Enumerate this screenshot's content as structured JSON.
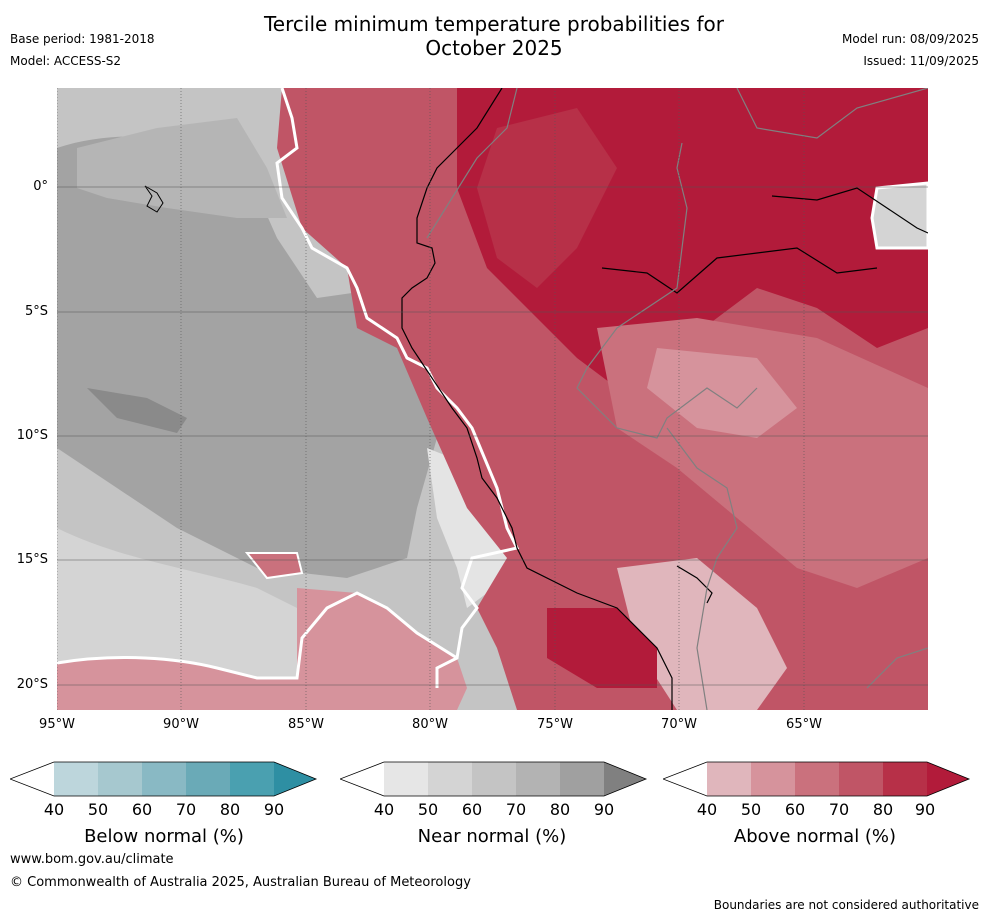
{
  "title_line1": "Tercile minimum temperature probabilities for",
  "title_line2": "October 2025",
  "base_period": "Base period: 1981-2018",
  "model": "Model: ACCESS-S2",
  "model_run": "Model run: 08/09/2025",
  "issued": "Issued: 11/09/2025",
  "lat_labels": [
    "0°",
    "5°S",
    "10°S",
    "15°S",
    "20°S"
  ],
  "lon_labels": [
    "95°W",
    "90°W",
    "85°W",
    "80°W",
    "75°W",
    "70°W",
    "65°W"
  ],
  "colorbars": [
    {
      "label": "Below normal (%)",
      "ticks": [
        "40",
        "50",
        "60",
        "70",
        "80",
        "90"
      ],
      "colors": [
        "#ffffff",
        "#bdd6dc",
        "#a6c8cf",
        "#89b9c4",
        "#6aaab7",
        "#4aa0b0",
        "#2e8fa3"
      ]
    },
    {
      "label": "Near normal (%)",
      "ticks": [
        "40",
        "50",
        "60",
        "70",
        "80",
        "90"
      ],
      "colors": [
        "#ffffff",
        "#e6e6e6",
        "#d4d4d4",
        "#c4c4c4",
        "#b3b3b3",
        "#a0a0a0",
        "#808080"
      ]
    },
    {
      "label": "Above normal (%)",
      "ticks": [
        "40",
        "50",
        "60",
        "70",
        "80",
        "90"
      ],
      "colors": [
        "#ffffff",
        "#e0b6bc",
        "#d6939c",
        "#ca717d",
        "#c05566",
        "#b73048",
        "#b21b3a"
      ]
    }
  ],
  "website": "www.bom.gov.au/climate",
  "copyright": "© Commonwealth of Australia 2025, Australian Bureau of Meteorology",
  "disclaimer": "Boundaries are not considered authoritative"
}
